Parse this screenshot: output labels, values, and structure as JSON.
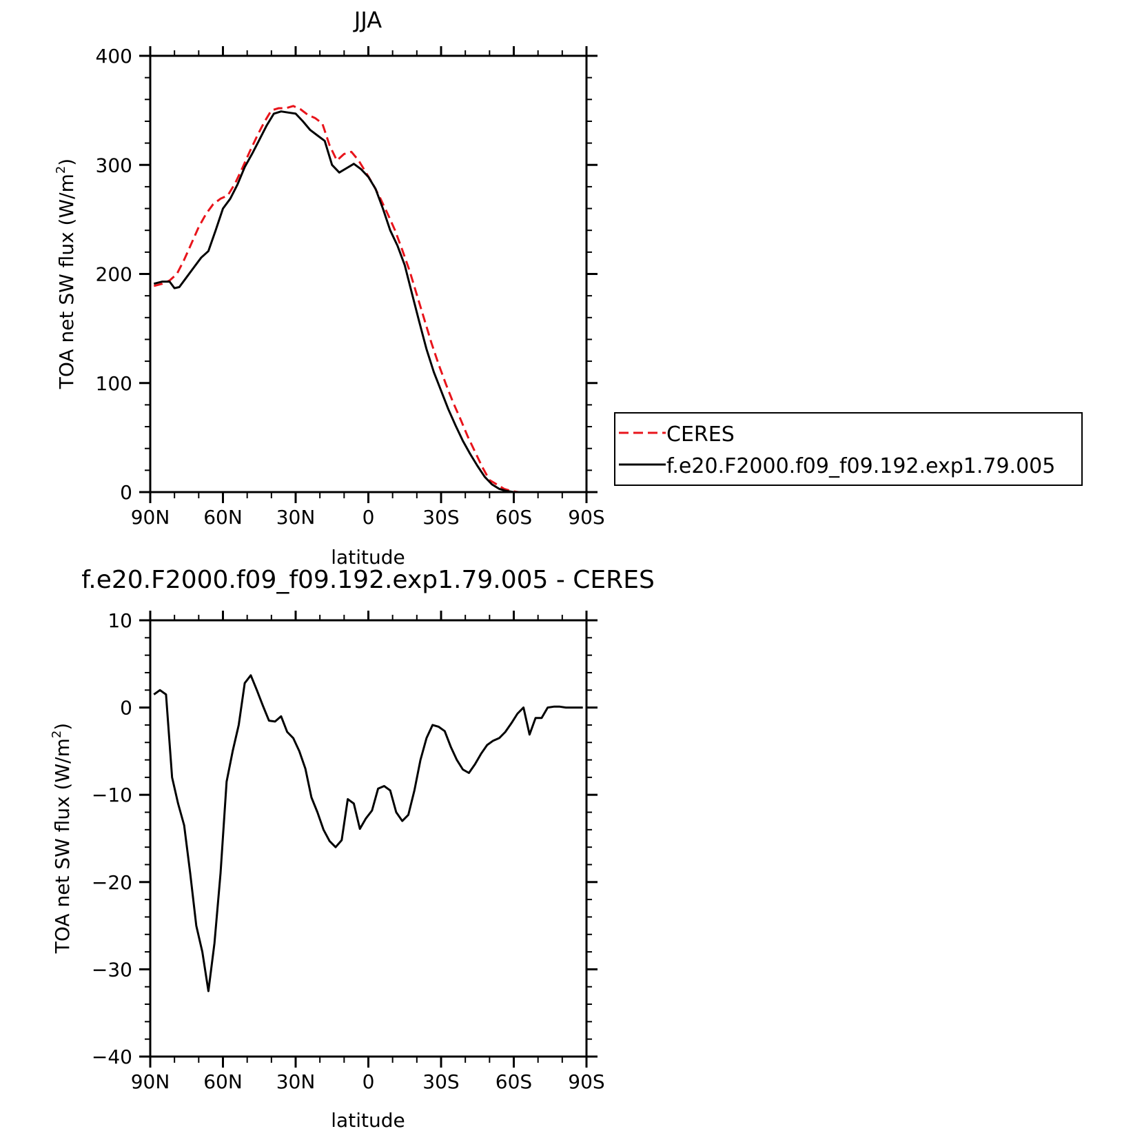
{
  "chart_data": [
    {
      "type": "line",
      "title": "JJA",
      "xlabel": "latitude",
      "ylabel": "TOA net SW flux (W/m",
      "ylabel_sup": "2",
      "ylabel_close": ")",
      "xlim": [
        90,
        -90
      ],
      "ylim": [
        0,
        400
      ],
      "x_ticks": [
        {
          "v": 90,
          "label": "90N"
        },
        {
          "v": 60,
          "label": "60N"
        },
        {
          "v": 30,
          "label": "30N"
        },
        {
          "v": 0,
          "label": "0"
        },
        {
          "v": -30,
          "label": "30S"
        },
        {
          "v": -60,
          "label": "60S"
        },
        {
          "v": -90,
          "label": "90S"
        }
      ],
      "y_ticks": [
        {
          "v": 0,
          "label": "0"
        },
        {
          "v": 100,
          "label": "100"
        },
        {
          "v": 200,
          "label": "200"
        },
        {
          "v": 300,
          "label": "300"
        },
        {
          "v": 400,
          "label": "400"
        }
      ],
      "legend": {
        "placement": "right",
        "entries": [
          {
            "name": "CERES",
            "color": "#e8141b",
            "dash": true
          },
          {
            "name": "f.e20.F2000.f09_f09.192.exp1.79.005",
            "color": "#000000",
            "dash": false
          }
        ]
      },
      "series": [
        {
          "name": "CERES",
          "color": "#e8141b",
          "dash": true,
          "x": [
            88.5,
            85,
            82,
            79,
            76,
            73,
            70,
            67,
            64,
            61,
            58,
            55,
            52,
            49,
            46,
            43,
            40,
            37,
            34,
            31,
            28,
            25,
            22,
            19,
            16,
            13,
            10,
            7,
            4,
            1,
            -2,
            -5,
            -8,
            -11,
            -14,
            -17,
            -20,
            -23,
            -26,
            -29,
            -32,
            -35,
            -38,
            -41,
            -44,
            -47,
            -50,
            -53,
            -56,
            -59,
            -62,
            -65,
            -68,
            -71,
            -74,
            -77,
            -80,
            -83,
            -86,
            -88.5
          ],
          "values": [
            189,
            191,
            194,
            200,
            213,
            228,
            243,
            255,
            264,
            269,
            272,
            283,
            297,
            312,
            326,
            339,
            350,
            352,
            352,
            354,
            351,
            346,
            343,
            338,
            318,
            304,
            310,
            312,
            304,
            293,
            282,
            269,
            255,
            240,
            222,
            203,
            181,
            159,
            137,
            117,
            99,
            82,
            67,
            51,
            37,
            23,
            11,
            7,
            3,
            1,
            0,
            0,
            0,
            0,
            0,
            0,
            0,
            0,
            0,
            0
          ]
        },
        {
          "name": "f.e20.F2000.f09_f09.192.exp1.79.005",
          "color": "#000000",
          "dash": false,
          "x": [
            88.5,
            85,
            82,
            80,
            78,
            75,
            72,
            69,
            66,
            63,
            60,
            57,
            54,
            51,
            48,
            45,
            42,
            39,
            36,
            33,
            30,
            27,
            24,
            21,
            18,
            15,
            12,
            9,
            6,
            3,
            0,
            -3,
            -6,
            -9,
            -12,
            -15,
            -18,
            -21,
            -24,
            -27,
            -30,
            -33,
            -36,
            -39,
            -42,
            -45,
            -48,
            -51,
            -54,
            -57,
            -60,
            -63,
            -66,
            -69,
            -72,
            -75,
            -78,
            -81,
            -84,
            -88.5
          ],
          "values": [
            191,
            193,
            193,
            187,
            188,
            197,
            206,
            215,
            221,
            240,
            260,
            269,
            282,
            298,
            310,
            323,
            336,
            347,
            349,
            348,
            347,
            340,
            332,
            327,
            322,
            300,
            293,
            297,
            301,
            296,
            289,
            278,
            260,
            240,
            226,
            208,
            182,
            156,
            131,
            110,
            93,
            76,
            61,
            47,
            35,
            24,
            14,
            7,
            3,
            1,
            0,
            0,
            0,
            0,
            0,
            0,
            0,
            0,
            0,
            0
          ]
        }
      ]
    },
    {
      "type": "line",
      "title": "f.e20.F2000.f09_f09.192.exp1.79.005 - CERES",
      "xlabel": "latitude",
      "ylabel": "TOA net SW flux (W/m",
      "ylabel_sup": "2",
      "ylabel_close": ")",
      "xlim": [
        90,
        -90
      ],
      "ylim": [
        -40,
        10
      ],
      "x_ticks": [
        {
          "v": 90,
          "label": "90N"
        },
        {
          "v": 60,
          "label": "60N"
        },
        {
          "v": 30,
          "label": "30N"
        },
        {
          "v": 0,
          "label": "0"
        },
        {
          "v": -30,
          "label": "30S"
        },
        {
          "v": -60,
          "label": "60S"
        },
        {
          "v": -90,
          "label": "90S"
        }
      ],
      "y_ticks": [
        {
          "v": -40,
          "label": "−40"
        },
        {
          "v": -30,
          "label": "−30"
        },
        {
          "v": -20,
          "label": "−20"
        },
        {
          "v": -10,
          "label": "−10"
        },
        {
          "v": 0,
          "label": "0"
        },
        {
          "v": 10,
          "label": "10"
        }
      ],
      "series": [
        {
          "name": "f.e20.F2000.f09_f09.192.exp1.79.005 - CERES",
          "color": "#000000",
          "dash": false,
          "x": [
            88.5,
            86,
            83.5,
            81,
            78.5,
            76,
            73.5,
            71,
            68.5,
            66,
            63.5,
            61,
            58.5,
            56,
            53.5,
            51,
            48.5,
            46,
            43.5,
            41,
            38.5,
            36,
            33.5,
            31,
            28.5,
            26,
            23.5,
            21,
            18.5,
            16,
            13.5,
            11,
            8.5,
            6,
            3.5,
            1,
            -1.5,
            -4,
            -6.5,
            -9,
            -11.5,
            -14,
            -16.5,
            -19,
            -21.5,
            -24,
            -26.5,
            -29,
            -31.5,
            -34,
            -36.5,
            -39,
            -41.5,
            -44,
            -46.5,
            -49,
            -51.5,
            -54,
            -56.5,
            -59,
            -61.5,
            -64,
            -66.5,
            -69,
            -71.5,
            -74,
            -76.5,
            -79,
            -81.5,
            -84,
            -86.5,
            -88.5
          ],
          "values": [
            1.5,
            2.0,
            1.5,
            -8.0,
            -11.0,
            -13.5,
            -19.0,
            -25.0,
            -28.0,
            -32.5,
            -27.0,
            -19.0,
            -8.5,
            -5.0,
            -2.0,
            2.8,
            3.7,
            2.0,
            0.2,
            -1.5,
            -1.6,
            -1.0,
            -2.8,
            -3.5,
            -5.0,
            -7.0,
            -10.3,
            -12.0,
            -14.0,
            -15.3,
            -16.0,
            -15.2,
            -10.5,
            -11.0,
            -13.9,
            -12.7,
            -11.8,
            -9.3,
            -9.0,
            -9.5,
            -12.0,
            -13.0,
            -12.3,
            -9.5,
            -6.0,
            -3.5,
            -2.0,
            -2.2,
            -2.7,
            -4.5,
            -6.0,
            -7.1,
            -7.5,
            -6.5,
            -5.3,
            -4.3,
            -3.8,
            -3.5,
            -2.8,
            -1.8,
            -0.7,
            0.0,
            -3.1,
            -1.2,
            -1.2,
            0.0,
            0.1,
            0.1,
            0.0,
            0.0,
            0.0,
            0.0
          ]
        }
      ]
    }
  ]
}
